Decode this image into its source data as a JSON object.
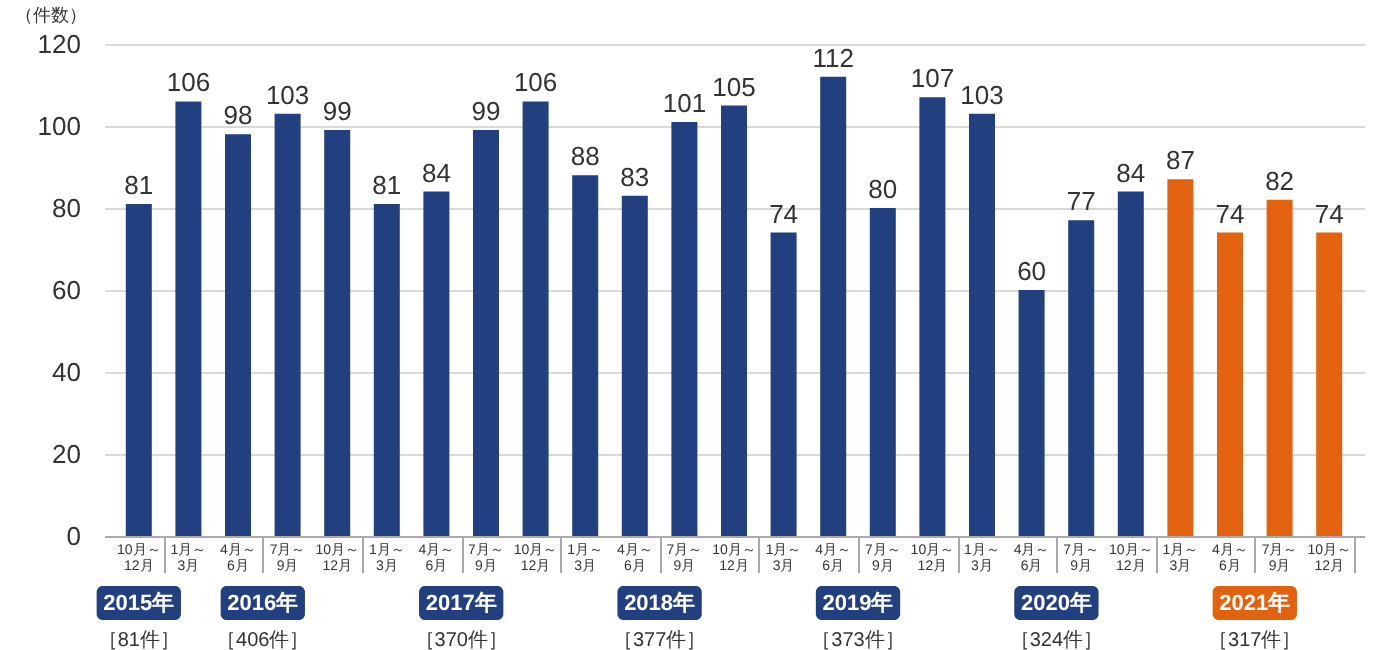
{
  "chart_data": {
    "type": "bar",
    "ylabel": "（件数）",
    "categories": [
      "10月～12月",
      "1月～3月",
      "4月～6月",
      "7月～9月",
      "10月～12月",
      "1月～3月",
      "4月～6月",
      "7月～9月",
      "10月～12月",
      "1月～3月",
      "4月～6月",
      "7月～9月",
      "10月～12月",
      "1月～3月",
      "4月～6月",
      "7月～9月",
      "10月～12月",
      "1月～3月",
      "4月～6月",
      "7月～9月",
      "10月～12月",
      "1月～3月",
      "4月～6月",
      "7月～9月",
      "10月～12月"
    ],
    "values": [
      81,
      106,
      98,
      103,
      99,
      81,
      84,
      99,
      106,
      88,
      83,
      101,
      105,
      74,
      112,
      80,
      107,
      103,
      60,
      77,
      84,
      87,
      74,
      82,
      74
    ],
    "colors": [
      "#223f80",
      "#223f80",
      "#223f80",
      "#223f80",
      "#223f80",
      "#223f80",
      "#223f80",
      "#223f80",
      "#223f80",
      "#223f80",
      "#223f80",
      "#223f80",
      "#223f80",
      "#223f80",
      "#223f80",
      "#223f80",
      "#223f80",
      "#223f80",
      "#223f80",
      "#223f80",
      "#223f80",
      "#e2620f",
      "#e2620f",
      "#e2620f",
      "#e2620f"
    ],
    "ylim": [
      0,
      120
    ],
    "yticks": [
      0,
      20,
      40,
      60,
      80,
      100,
      120
    ],
    "grid": "y",
    "data_labels": true,
    "annotations": [
      "2015年",
      "［81件］",
      "2016年",
      "［406件］",
      "2017年",
      "［370件］",
      "2018年",
      "［377件］",
      "2019年",
      "［373件］",
      "2020年",
      "［324件］",
      "2021年",
      "［317件］"
    ]
  }
}
